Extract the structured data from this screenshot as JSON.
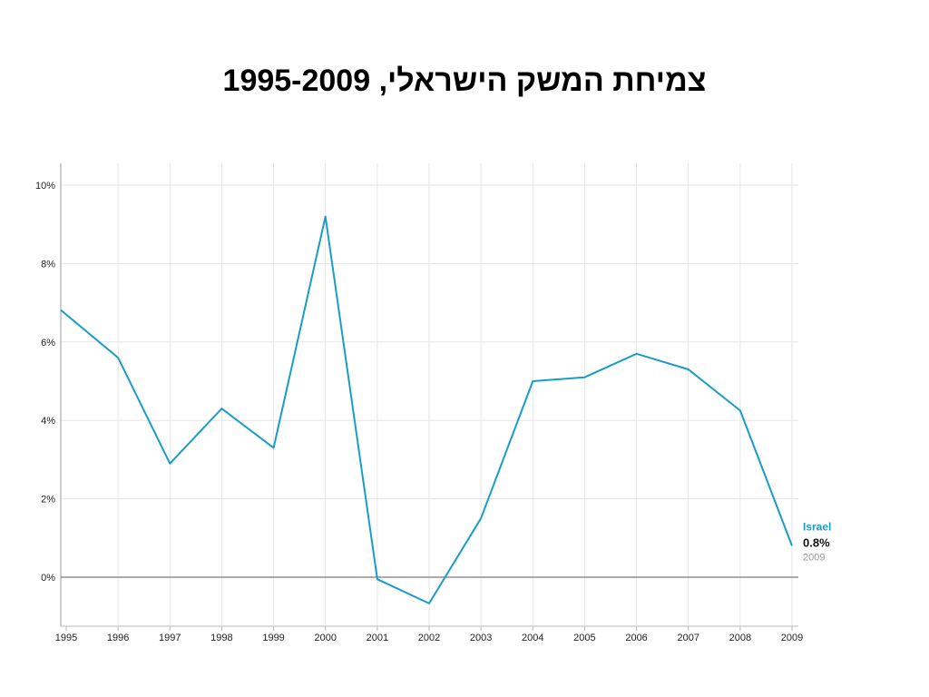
{
  "page": {
    "title": "צמיחת המשק הישראלי, 1995-2009"
  },
  "chart_data": {
    "type": "line",
    "title": "צמיחת המשק הישראלי, 1995-2009",
    "xlabel": "",
    "ylabel": "",
    "x_ticks": [
      "1995",
      "1996",
      "1997",
      "1998",
      "1999",
      "2000",
      "2001",
      "2002",
      "2003",
      "2004",
      "2005",
      "2006",
      "2007",
      "2008",
      "2009"
    ],
    "y_ticks": [
      "0%",
      "2%",
      "4%",
      "6%",
      "8%",
      "10%"
    ],
    "ylim": [
      -1.2,
      10.6
    ],
    "grid": true,
    "series": [
      {
        "name": "Israel",
        "color": "#1a9cc8",
        "points": [
          {
            "x": 1995,
            "y": 6.7
          },
          {
            "x": 1996,
            "y": 5.6
          },
          {
            "x": 1997,
            "y": 2.9
          },
          {
            "x": 1998,
            "y": 4.3
          },
          {
            "x": 1999,
            "y": 3.3
          },
          {
            "x": 2000,
            "y": 9.2
          },
          {
            "x": 2001,
            "y": -0.05
          },
          {
            "x": 2002,
            "y": -0.67
          },
          {
            "x": 2003,
            "y": 1.5
          },
          {
            "x": 2004,
            "y": 5.0
          },
          {
            "x": 2005,
            "y": 5.1
          },
          {
            "x": 2006,
            "y": 5.7
          },
          {
            "x": 2007,
            "y": 5.3
          },
          {
            "x": 2008,
            "y": 4.25
          },
          {
            "x": 2009,
            "y": 0.8
          }
        ]
      }
    ],
    "end_label": {
      "series": "Israel",
      "value": "0.8%",
      "year": "2009"
    }
  }
}
